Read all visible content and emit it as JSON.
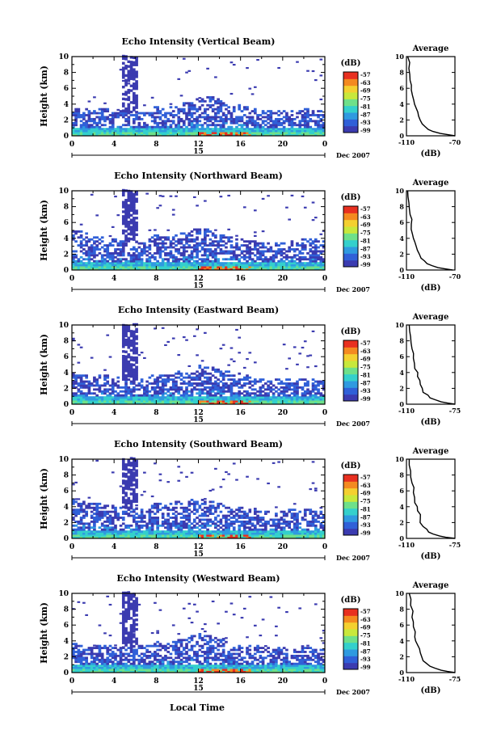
{
  "figure": {
    "colors": {
      "scale": [
        "#3b3bb0",
        "#3060d8",
        "#2f9ae0",
        "#34d0cc",
        "#6ee08a",
        "#c8e83c",
        "#f4d030",
        "#f48a20",
        "#e83020"
      ],
      "background": "#ffffff",
      "axis": "#000000"
    },
    "date_label": "Dec 2007",
    "day_label": "15",
    "xlabel": "Local Time",
    "units_label": "(dB)"
  },
  "chart_data": [
    {
      "type": "heatmap",
      "title": "Echo Intensity (Vertical Beam)",
      "ylabel": "Height (km)",
      "ylim": [
        0,
        10
      ],
      "yticks": [
        "0",
        "2",
        "4",
        "6",
        "8",
        "10"
      ],
      "xlim": [
        0,
        24
      ],
      "xticks": [
        "0",
        "4",
        "8",
        "12",
        "16",
        "20",
        "0"
      ],
      "colorbar": {
        "label": "(dB)",
        "ticks": [
          "-57",
          "-63",
          "-69",
          "-75",
          "-81",
          "-87",
          "-93",
          "-99"
        ]
      },
      "cloud_top_km": [
        3.4,
        3.6,
        3.3,
        3.5,
        3.2,
        3.0,
        2.8,
        3.0,
        3.6,
        3.4,
        3.8,
        4.2,
        4.6,
        5.0,
        4.6,
        4.2,
        3.8,
        3.4,
        3.2,
        3.0,
        3.2,
        3.0,
        3.4,
        3.2,
        3.0
      ]
    },
    {
      "type": "line",
      "title": "Average",
      "xlabel": "(dB)",
      "xlim": [
        -110,
        -70
      ],
      "xticks": [
        "-110",
        "-70"
      ],
      "ylim": [
        0,
        10
      ],
      "yticks": [
        "0",
        "2",
        "4",
        "6",
        "8",
        "10"
      ],
      "x": [
        -70,
        -82,
        -92,
        -97,
        -100,
        -102,
        -104,
        -106,
        -107,
        -108,
        -109
      ],
      "y": [
        0,
        0.3,
        0.8,
        1.5,
        2.5,
        3.5,
        4.5,
        5.8,
        7.0,
        8.5,
        10
      ]
    },
    {
      "type": "heatmap",
      "title": "Echo Intensity (Northward Beam)",
      "ylabel": "Height (km)",
      "ylim": [
        0,
        10
      ],
      "yticks": [
        "0",
        "2",
        "4",
        "6",
        "8",
        "10"
      ],
      "xlim": [
        0,
        24
      ],
      "xticks": [
        "0",
        "4",
        "8",
        "12",
        "16",
        "20",
        "0"
      ],
      "colorbar": {
        "label": "(dB)",
        "ticks": [
          "-57",
          "-63",
          "-69",
          "-75",
          "-81",
          "-87",
          "-93",
          "-99"
        ]
      },
      "cloud_top_km": [
        5.0,
        4.8,
        4.2,
        4.0,
        3.8,
        3.6,
        3.4,
        3.6,
        4.4,
        4.0,
        4.4,
        4.8,
        5.2,
        5.0,
        4.6,
        4.2,
        3.8,
        3.6,
        3.4,
        3.2,
        3.4,
        3.6,
        3.8,
        3.8,
        3.6
      ]
    },
    {
      "type": "line",
      "title": "Average",
      "xlabel": "(dB)",
      "xlim": [
        -110,
        -70
      ],
      "xticks": [
        "-110",
        "-70"
      ],
      "ylim": [
        0,
        10
      ],
      "yticks": [
        "0",
        "2",
        "4",
        "6",
        "8",
        "10"
      ],
      "x": [
        -72,
        -84,
        -93,
        -98,
        -101,
        -103,
        -105,
        -106,
        -107,
        -108,
        -109
      ],
      "y": [
        0,
        0.3,
        0.8,
        1.5,
        2.5,
        3.5,
        4.5,
        5.8,
        7.0,
        8.5,
        10
      ]
    },
    {
      "type": "heatmap",
      "title": "Echo Intensity (Eastward Beam)",
      "ylabel": "Height (km)",
      "ylim": [
        0,
        10
      ],
      "yticks": [
        "0",
        "2",
        "4",
        "6",
        "8",
        "10"
      ],
      "xlim": [
        0,
        24
      ],
      "xticks": [
        "0",
        "4",
        "8",
        "12",
        "16",
        "20",
        "0"
      ],
      "colorbar": {
        "label": "(dB)",
        "ticks": [
          "-57",
          "-63",
          "-69",
          "-75",
          "-81",
          "-87",
          "-93",
          "-99"
        ]
      },
      "cloud_top_km": [
        3.8,
        3.6,
        3.4,
        3.6,
        3.4,
        3.2,
        3.0,
        3.2,
        3.8,
        3.6,
        4.0,
        4.4,
        4.8,
        4.6,
        4.4,
        4.0,
        3.8,
        3.4,
        3.2,
        3.0,
        3.2,
        3.0,
        3.2,
        3.0,
        2.8
      ]
    },
    {
      "type": "line",
      "title": "Average",
      "xlabel": "(dB)",
      "xlim": [
        -110,
        -75
      ],
      "xticks": [
        "-110",
        "-75"
      ],
      "ylim": [
        0,
        10
      ],
      "yticks": [
        "0",
        "2",
        "4",
        "6",
        "8",
        "10"
      ],
      "x": [
        -75,
        -85,
        -93,
        -98,
        -100,
        -102,
        -104,
        -105,
        -106,
        -107,
        -108
      ],
      "y": [
        0,
        0.3,
        0.8,
        1.5,
        2.5,
        3.5,
        4.5,
        5.8,
        7.0,
        8.5,
        10
      ]
    },
    {
      "type": "heatmap",
      "title": "Echo Intensity (Southward Beam)",
      "ylabel": "Height (km)",
      "ylim": [
        0,
        10
      ],
      "yticks": [
        "0",
        "2",
        "4",
        "6",
        "8",
        "10"
      ],
      "xlim": [
        0,
        24
      ],
      "xticks": [
        "0",
        "4",
        "8",
        "12",
        "16",
        "20",
        "0"
      ],
      "colorbar": {
        "label": "(dB)",
        "ticks": [
          "-57",
          "-63",
          "-69",
          "-75",
          "-81",
          "-87",
          "-93",
          "-99"
        ]
      },
      "cloud_top_km": [
        4.8,
        4.6,
        4.4,
        4.2,
        4.0,
        3.8,
        3.6,
        3.8,
        4.4,
        4.2,
        4.6,
        4.8,
        5.0,
        4.6,
        4.4,
        4.0,
        3.8,
        3.6,
        3.4,
        3.2,
        3.4,
        3.6,
        3.8,
        3.6,
        3.4
      ]
    },
    {
      "type": "line",
      "title": "Average",
      "xlabel": "(dB)",
      "xlim": [
        -110,
        -75
      ],
      "xticks": [
        "-110",
        "-75"
      ],
      "ylim": [
        0,
        10
      ],
      "yticks": [
        "0",
        "2",
        "4",
        "6",
        "8",
        "10"
      ],
      "x": [
        -75,
        -86,
        -94,
        -98,
        -100,
        -102,
        -104,
        -105,
        -106,
        -107,
        -108
      ],
      "y": [
        0,
        0.3,
        0.8,
        1.5,
        2.5,
        3.5,
        4.5,
        5.8,
        7.0,
        8.5,
        10
      ]
    },
    {
      "type": "heatmap",
      "title": "Echo Intensity (Westward Beam)",
      "ylabel": "Height (km)",
      "ylim": [
        0,
        10
      ],
      "yticks": [
        "0",
        "2",
        "4",
        "6",
        "8",
        "10"
      ],
      "xlim": [
        0,
        24
      ],
      "xticks": [
        "0",
        "4",
        "8",
        "12",
        "16",
        "20",
        "0"
      ],
      "colorbar": {
        "label": "(dB)",
        "ticks": [
          "-57",
          "-63",
          "-69",
          "-75",
          "-81",
          "-87",
          "-93",
          "-99"
        ]
      },
      "cloud_top_km": [
        3.6,
        3.4,
        3.2,
        3.4,
        3.2,
        3.0,
        3.2,
        3.4,
        3.8,
        3.6,
        4.0,
        4.4,
        4.8,
        4.6,
        4.2,
        3.8,
        3.6,
        3.4,
        3.2,
        3.0,
        3.2,
        3.0,
        3.2,
        3.0,
        2.8
      ]
    },
    {
      "type": "line",
      "title": "Average",
      "xlabel": "(dB)",
      "xlim": [
        -110,
        -75
      ],
      "xticks": [
        "-110",
        "-75"
      ],
      "ylim": [
        0,
        10
      ],
      "yticks": [
        "0",
        "2",
        "4",
        "6",
        "8",
        "10"
      ],
      "x": [
        -75,
        -85,
        -93,
        -98,
        -100,
        -102,
        -104,
        -105,
        -106,
        -107,
        -108
      ],
      "y": [
        0,
        0.3,
        0.8,
        1.5,
        2.5,
        3.5,
        4.5,
        5.8,
        7.0,
        8.5,
        10
      ]
    }
  ]
}
